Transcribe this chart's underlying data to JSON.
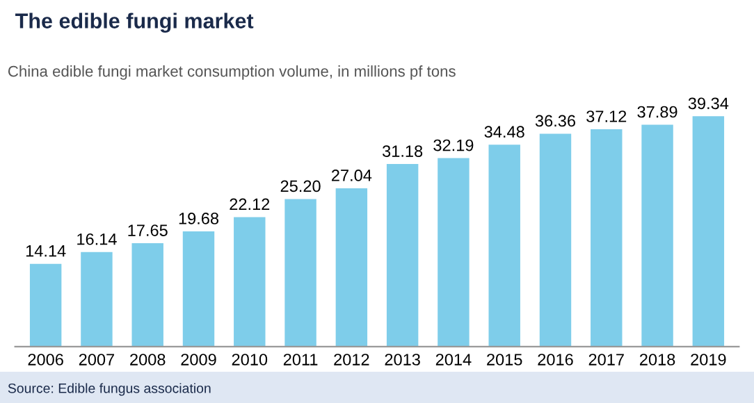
{
  "chart_data": {
    "type": "bar",
    "title": "The edible fungi market",
    "subtitle": "China edible fungi market consumption volume, in millions pf tons",
    "categories": [
      "2006",
      "2007",
      "2008",
      "2009",
      "2010",
      "2011",
      "2012",
      "2013",
      "2014",
      "2015",
      "2016",
      "2017",
      "2018",
      "2019"
    ],
    "values": [
      14.14,
      16.14,
      17.65,
      19.68,
      22.12,
      25.2,
      27.04,
      31.18,
      32.19,
      34.48,
      36.36,
      37.12,
      37.89,
      39.34
    ],
    "value_labels": [
      "14.14",
      "16.14",
      "17.65",
      "19.68",
      "22.12",
      "25.20",
      "27.04",
      "31.18",
      "32.19",
      "34.48",
      "36.36",
      "37.12",
      "37.89",
      "39.34"
    ],
    "color": "#7ecdea",
    "grid": false,
    "legend": false,
    "annotations": [
      "Source: Edible fungus association"
    ]
  }
}
